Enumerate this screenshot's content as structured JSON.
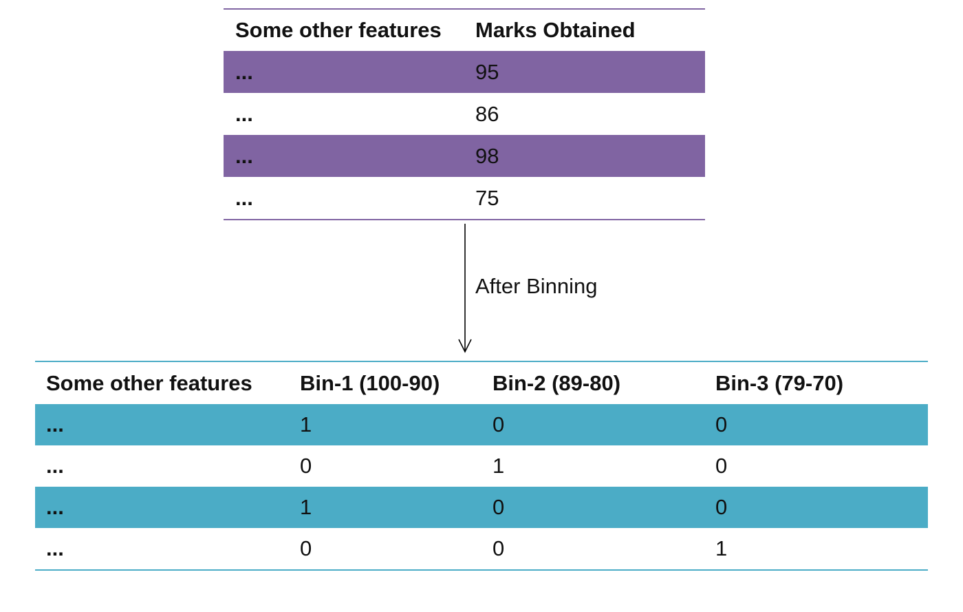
{
  "top_table": {
    "headers": [
      "Some other features",
      "Marks Obtained"
    ],
    "rows": [
      [
        "...",
        "95"
      ],
      [
        "...",
        "86"
      ],
      [
        "...",
        "98"
      ],
      [
        "...",
        "75"
      ]
    ]
  },
  "arrow_label": "After Binning",
  "bottom_table": {
    "headers": [
      "Some other features",
      "Bin-1 (100-90)",
      "Bin-2 (89-80)",
      "Bin-3 (79-70)"
    ],
    "rows": [
      [
        "...",
        "1",
        "0",
        "0"
      ],
      [
        "...",
        "0",
        "1",
        "0"
      ],
      [
        "...",
        "1",
        "0",
        "0"
      ],
      [
        "...",
        "0",
        "0",
        "1"
      ]
    ]
  },
  "colors": {
    "top_accent": "#8064a2",
    "bottom_accent": "#4bacc6",
    "arrow": "#000000"
  }
}
